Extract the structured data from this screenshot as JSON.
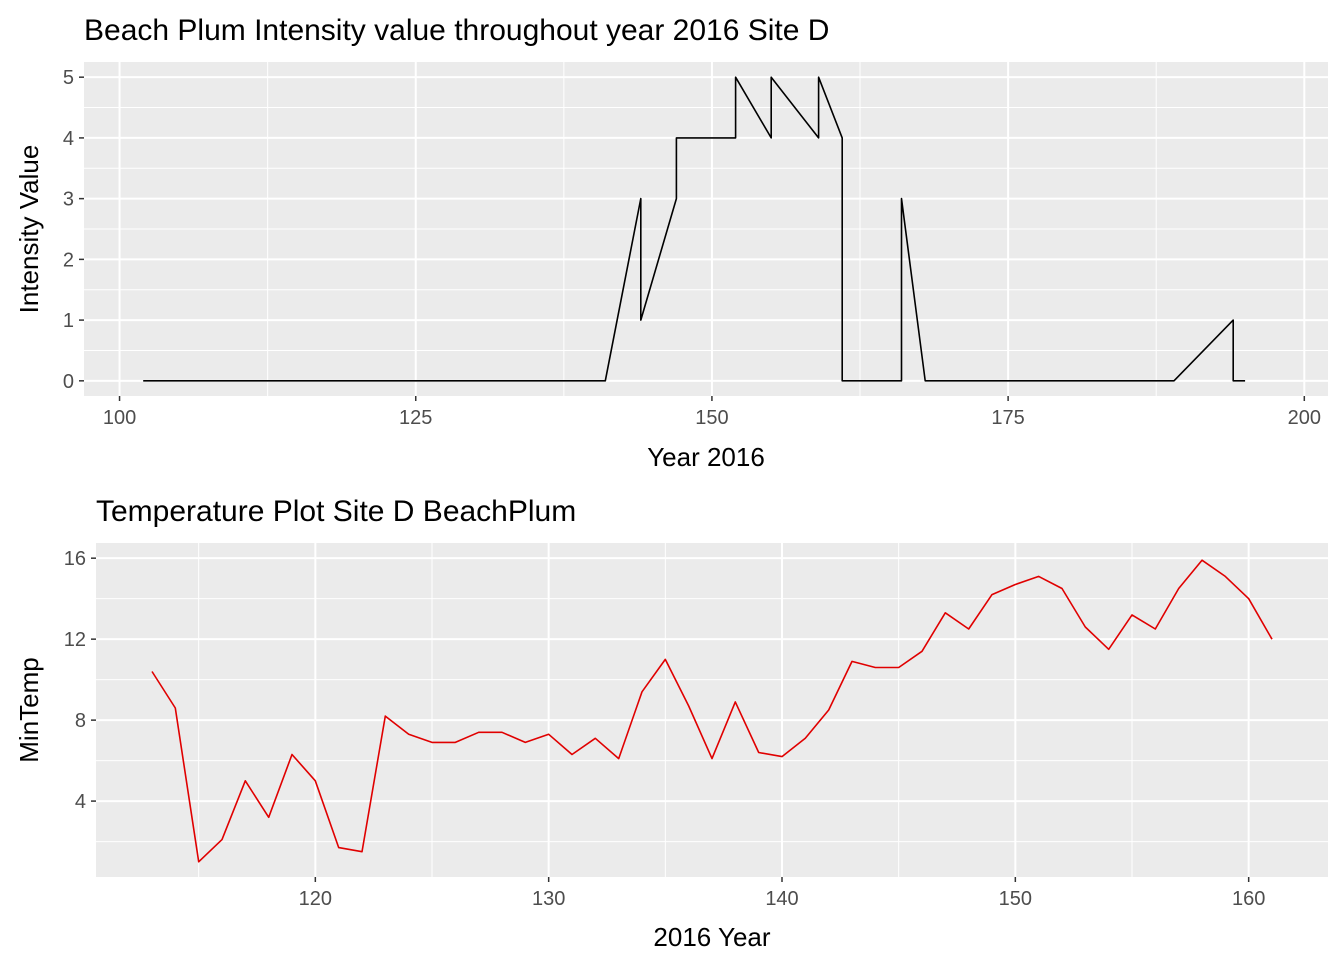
{
  "chart_data": [
    {
      "type": "line",
      "title": "Beach Plum Intensity value throughout year 2016 Site D",
      "xlabel": "Year 2016",
      "ylabel": "Intensity Value",
      "xlim": [
        97,
        202
      ],
      "ylim": [
        -0.25,
        5.25
      ],
      "x_ticks": [
        100,
        125,
        150,
        175,
        200
      ],
      "x_tick_labels": [
        "100",
        "125",
        "150",
        "175",
        "200"
      ],
      "y_ticks": [
        0,
        1,
        2,
        3,
        4,
        5
      ],
      "y_tick_labels": [
        "0",
        "1",
        "2",
        "3",
        "4",
        "5"
      ],
      "grid": true,
      "colors": {
        "line": "#000000",
        "panel": "#ebebeb",
        "grid": "#ffffff"
      },
      "series": [
        {
          "x": [
            102,
            141,
            144,
            144,
            147,
            147,
            152,
            152,
            155,
            155,
            159,
            159,
            161,
            161,
            166,
            166,
            168,
            189,
            194,
            194,
            195
          ],
          "y": [
            0,
            0,
            3,
            1,
            3,
            4,
            4,
            5,
            4,
            5,
            4,
            5,
            4,
            0,
            0,
            3,
            0,
            0,
            1,
            0,
            0
          ]
        }
      ]
    },
    {
      "type": "line",
      "title": "Temperature Plot Site D BeachPlum",
      "xlabel": "2016 Year",
      "ylabel": "MinTemp",
      "xlim": [
        110.6,
        163.4
      ],
      "ylim": [
        0.25,
        16.75
      ],
      "x_ticks": [
        120,
        130,
        140,
        150,
        160
      ],
      "x_tick_labels": [
        "120",
        "130",
        "140",
        "150",
        "160"
      ],
      "y_ticks": [
        4,
        8,
        12,
        16
      ],
      "y_tick_labels": [
        "4",
        "8",
        "12",
        "16"
      ],
      "grid": true,
      "colors": {
        "line": "#e00000",
        "panel": "#ebebeb",
        "grid": "#ffffff"
      },
      "series": [
        {
          "x": [
            113,
            114,
            115,
            116,
            117,
            118,
            119,
            120,
            121,
            122,
            123,
            124,
            125,
            126,
            127,
            128,
            129,
            130,
            131,
            132,
            133,
            134,
            135,
            136,
            137,
            138,
            139,
            140,
            141,
            142,
            143,
            144,
            145,
            146,
            147,
            148,
            149,
            150,
            151,
            152,
            153,
            154,
            155,
            156,
            157,
            158,
            159,
            160,
            161
          ],
          "y": [
            10.4,
            8.6,
            1.0,
            2.1,
            5.0,
            3.2,
            6.3,
            5.0,
            1.7,
            1.5,
            8.2,
            7.3,
            6.9,
            6.9,
            7.4,
            7.4,
            6.9,
            7.3,
            6.3,
            7.1,
            6.1,
            9.4,
            11.0,
            8.7,
            6.1,
            8.9,
            6.4,
            6.2,
            7.1,
            8.5,
            10.9,
            10.6,
            10.6,
            11.4,
            13.3,
            12.5,
            14.2,
            14.7,
            15.1,
            14.5,
            12.6,
            11.5,
            13.2,
            12.5,
            14.5,
            15.9,
            15.1,
            14.0,
            12.0
          ]
        }
      ]
    }
  ]
}
